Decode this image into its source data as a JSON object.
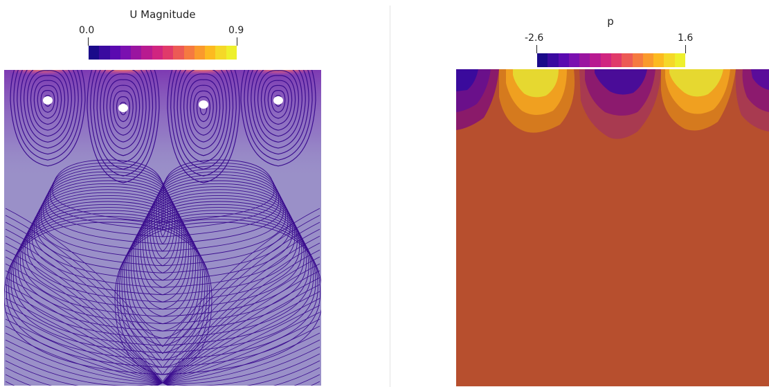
{
  "left_view": {
    "legend": {
      "title": "U Magnitude",
      "min_label": "0.0",
      "max_label": "0.9",
      "colormap": [
        "#1a0a8a",
        "#3a0aa0",
        "#5a0ab0",
        "#7a10b0",
        "#9a15a0",
        "#b81a90",
        "#d02580",
        "#e03a6a",
        "#ec5a55",
        "#f57a40",
        "#fa9a2c",
        "#fcba20",
        "#f5d828",
        "#eef02c"
      ]
    },
    "field_colors": {
      "background": "#9a90c8",
      "streamline": "#3a0c8e",
      "hot_edge": "#f4c040"
    }
  },
  "right_view": {
    "legend": {
      "title": "p",
      "min_label": "-2.6",
      "max_label": "1.6",
      "colormap": [
        "#1a0a8a",
        "#3a0aa0",
        "#5a0ab0",
        "#7a10b0",
        "#9a15a0",
        "#b81a90",
        "#d02580",
        "#e03a6a",
        "#ec5a55",
        "#f57a40",
        "#fa9a2c",
        "#fcba20",
        "#f5d828",
        "#eef02c"
      ]
    },
    "field_colors": {
      "background": "#b74f2e",
      "low": "#4a1296",
      "high": "#e8e030"
    }
  }
}
